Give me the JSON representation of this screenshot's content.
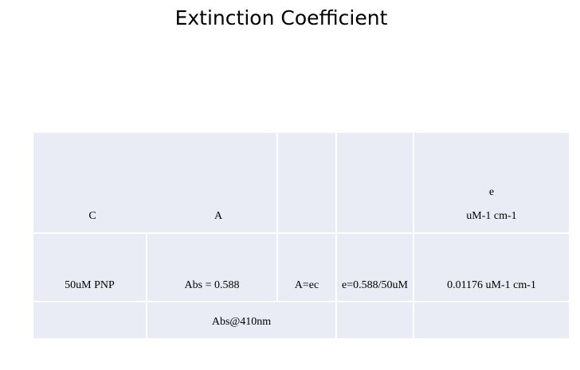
{
  "title": "Extinction Coefficient",
  "table": {
    "rows": [
      [
        "C",
        "A",
        "e",
        "uM-1 cm-1"
      ],
      [
        "50uM PNP",
        "Abs = 0.588",
        "A=ec",
        "e=0.588/50uM",
        "0.01176 uM-1 cm-1"
      ],
      [
        "Abs@410nm"
      ]
    ]
  }
}
